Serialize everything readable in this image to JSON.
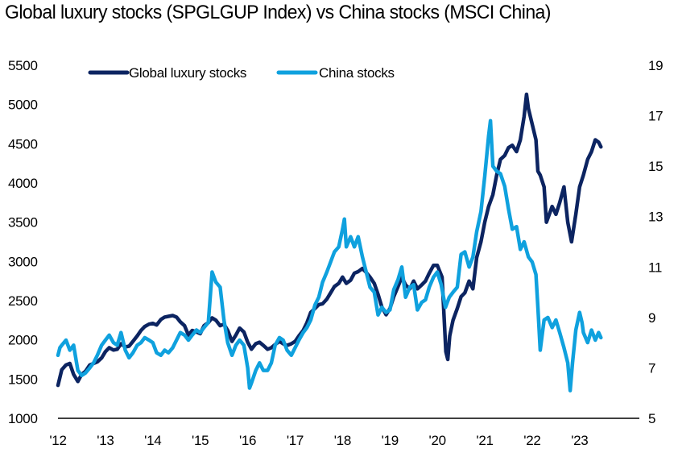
{
  "chart_data": {
    "type": "line",
    "title": "Global luxury stocks (SPGLGUP Index) vs China stocks (MSCI China)",
    "xlabel": "",
    "ylabel_left": "",
    "ylabel_right": "",
    "x_ticks": [
      "'12",
      "'13",
      "'14",
      "'15",
      "'16",
      "'17",
      "'18",
      "'19",
      "'20",
      "'21",
      "'22",
      "'23"
    ],
    "x_range": [
      2012,
      2023.75
    ],
    "y_left": {
      "min": 1000,
      "max": 5500,
      "ticks": [
        "1000",
        "1500",
        "2000",
        "2500",
        "3000",
        "3500",
        "4000",
        "4500",
        "5000",
        "5500"
      ]
    },
    "y_right": {
      "min": 5,
      "max": 19,
      "ticks": [
        "5",
        "7",
        "9",
        "11",
        "13",
        "15",
        "17",
        "19"
      ]
    },
    "legend": {
      "position": "top-left"
    },
    "series": [
      {
        "name": "Global luxury stocks",
        "axis": "left",
        "color": "#0c2461",
        "points": [
          [
            2012.0,
            1420
          ],
          [
            2012.08,
            1620
          ],
          [
            2012.17,
            1680
          ],
          [
            2012.25,
            1700
          ],
          [
            2012.33,
            1560
          ],
          [
            2012.42,
            1470
          ],
          [
            2012.5,
            1560
          ],
          [
            2012.58,
            1600
          ],
          [
            2012.67,
            1680
          ],
          [
            2012.75,
            1700
          ],
          [
            2012.83,
            1720
          ],
          [
            2012.92,
            1770
          ],
          [
            2013.0,
            1850
          ],
          [
            2013.08,
            1900
          ],
          [
            2013.17,
            1870
          ],
          [
            2013.25,
            1880
          ],
          [
            2013.33,
            1950
          ],
          [
            2013.42,
            1910
          ],
          [
            2013.5,
            1920
          ],
          [
            2013.58,
            1980
          ],
          [
            2013.67,
            2050
          ],
          [
            2013.75,
            2120
          ],
          [
            2013.83,
            2170
          ],
          [
            2013.92,
            2200
          ],
          [
            2014.0,
            2210
          ],
          [
            2014.08,
            2190
          ],
          [
            2014.17,
            2260
          ],
          [
            2014.25,
            2290
          ],
          [
            2014.33,
            2300
          ],
          [
            2014.42,
            2310
          ],
          [
            2014.5,
            2290
          ],
          [
            2014.58,
            2230
          ],
          [
            2014.67,
            2180
          ],
          [
            2014.75,
            2060
          ],
          [
            2014.83,
            2120
          ],
          [
            2014.92,
            2100
          ],
          [
            2015.0,
            2080
          ],
          [
            2015.08,
            2180
          ],
          [
            2015.17,
            2220
          ],
          [
            2015.25,
            2280
          ],
          [
            2015.33,
            2250
          ],
          [
            2015.42,
            2180
          ],
          [
            2015.5,
            2200
          ],
          [
            2015.58,
            2120
          ],
          [
            2015.67,
            1980
          ],
          [
            2015.75,
            2060
          ],
          [
            2015.83,
            2150
          ],
          [
            2015.92,
            2100
          ],
          [
            2016.0,
            1970
          ],
          [
            2016.08,
            1880
          ],
          [
            2016.17,
            1950
          ],
          [
            2016.25,
            1970
          ],
          [
            2016.33,
            1930
          ],
          [
            2016.42,
            1880
          ],
          [
            2016.5,
            1900
          ],
          [
            2016.58,
            1940
          ],
          [
            2016.67,
            1980
          ],
          [
            2016.75,
            1950
          ],
          [
            2016.83,
            1930
          ],
          [
            2016.92,
            1950
          ],
          [
            2017.0,
            1980
          ],
          [
            2017.08,
            2050
          ],
          [
            2017.17,
            2120
          ],
          [
            2017.25,
            2220
          ],
          [
            2017.33,
            2350
          ],
          [
            2017.42,
            2400
          ],
          [
            2017.5,
            2450
          ],
          [
            2017.58,
            2460
          ],
          [
            2017.67,
            2520
          ],
          [
            2017.75,
            2600
          ],
          [
            2017.83,
            2680
          ],
          [
            2017.92,
            2720
          ],
          [
            2018.0,
            2800
          ],
          [
            2018.08,
            2720
          ],
          [
            2018.17,
            2760
          ],
          [
            2018.25,
            2850
          ],
          [
            2018.33,
            2870
          ],
          [
            2018.42,
            2910
          ],
          [
            2018.5,
            2860
          ],
          [
            2018.58,
            2800
          ],
          [
            2018.67,
            2720
          ],
          [
            2018.75,
            2580
          ],
          [
            2018.83,
            2420
          ],
          [
            2018.92,
            2320
          ],
          [
            2019.0,
            2400
          ],
          [
            2019.08,
            2550
          ],
          [
            2019.17,
            2680
          ],
          [
            2019.25,
            2800
          ],
          [
            2019.33,
            2700
          ],
          [
            2019.42,
            2650
          ],
          [
            2019.5,
            2750
          ],
          [
            2019.58,
            2650
          ],
          [
            2019.67,
            2700
          ],
          [
            2019.75,
            2750
          ],
          [
            2019.83,
            2850
          ],
          [
            2019.92,
            2950
          ],
          [
            2020.0,
            2950
          ],
          [
            2020.1,
            2800
          ],
          [
            2020.18,
            1850
          ],
          [
            2020.22,
            1750
          ],
          [
            2020.26,
            2050
          ],
          [
            2020.33,
            2250
          ],
          [
            2020.42,
            2400
          ],
          [
            2020.5,
            2550
          ],
          [
            2020.58,
            2600
          ],
          [
            2020.67,
            2750
          ],
          [
            2020.75,
            2650
          ],
          [
            2020.83,
            3050
          ],
          [
            2020.92,
            3250
          ],
          [
            2021.0,
            3500
          ],
          [
            2021.08,
            3700
          ],
          [
            2021.17,
            3850
          ],
          [
            2021.25,
            4100
          ],
          [
            2021.33,
            4300
          ],
          [
            2021.42,
            4350
          ],
          [
            2021.5,
            4450
          ],
          [
            2021.58,
            4480
          ],
          [
            2021.67,
            4400
          ],
          [
            2021.75,
            4550
          ],
          [
            2021.83,
            4850
          ],
          [
            2021.88,
            5130
          ],
          [
            2021.92,
            4950
          ],
          [
            2022.0,
            4750
          ],
          [
            2022.08,
            4550
          ],
          [
            2022.12,
            4150
          ],
          [
            2022.17,
            4100
          ],
          [
            2022.25,
            3950
          ],
          [
            2022.3,
            3500
          ],
          [
            2022.42,
            3700
          ],
          [
            2022.5,
            3600
          ],
          [
            2022.58,
            3750
          ],
          [
            2022.67,
            3950
          ],
          [
            2022.75,
            3500
          ],
          [
            2022.83,
            3250
          ],
          [
            2022.92,
            3600
          ],
          [
            2023.0,
            3950
          ],
          [
            2023.08,
            4100
          ],
          [
            2023.17,
            4300
          ],
          [
            2023.25,
            4400
          ],
          [
            2023.33,
            4550
          ],
          [
            2023.4,
            4520
          ],
          [
            2023.45,
            4460
          ]
        ]
      },
      {
        "name": "China stocks",
        "axis": "right",
        "color": "#0fa1de",
        "points": [
          [
            2012.0,
            7.5
          ],
          [
            2012.04,
            7.8
          ],
          [
            2012.08,
            7.9
          ],
          [
            2012.17,
            8.1
          ],
          [
            2012.25,
            7.7
          ],
          [
            2012.33,
            7.9
          ],
          [
            2012.42,
            6.9
          ],
          [
            2012.5,
            6.7
          ],
          [
            2012.58,
            6.8
          ],
          [
            2012.67,
            7.0
          ],
          [
            2012.75,
            7.2
          ],
          [
            2012.83,
            7.5
          ],
          [
            2012.92,
            7.9
          ],
          [
            2013.0,
            8.1
          ],
          [
            2013.08,
            8.3
          ],
          [
            2013.17,
            8.0
          ],
          [
            2013.25,
            7.9
          ],
          [
            2013.33,
            8.4
          ],
          [
            2013.42,
            7.7
          ],
          [
            2013.5,
            7.4
          ],
          [
            2013.58,
            7.6
          ],
          [
            2013.67,
            7.9
          ],
          [
            2013.75,
            8.0
          ],
          [
            2013.83,
            8.2
          ],
          [
            2013.92,
            8.1
          ],
          [
            2014.0,
            8.0
          ],
          [
            2014.08,
            7.6
          ],
          [
            2014.17,
            7.5
          ],
          [
            2014.25,
            7.7
          ],
          [
            2014.33,
            7.6
          ],
          [
            2014.42,
            7.8
          ],
          [
            2014.5,
            8.1
          ],
          [
            2014.58,
            8.4
          ],
          [
            2014.67,
            8.3
          ],
          [
            2014.75,
            8.1
          ],
          [
            2014.83,
            8.3
          ],
          [
            2014.92,
            8.5
          ],
          [
            2015.0,
            8.4
          ],
          [
            2015.08,
            8.6
          ],
          [
            2015.17,
            8.8
          ],
          [
            2015.25,
            10.8
          ],
          [
            2015.33,
            10.4
          ],
          [
            2015.42,
            10.2
          ],
          [
            2015.5,
            8.9
          ],
          [
            2015.58,
            8.0
          ],
          [
            2015.67,
            7.5
          ],
          [
            2015.75,
            7.9
          ],
          [
            2015.83,
            8.1
          ],
          [
            2015.92,
            7.9
          ],
          [
            2016.0,
            7.0
          ],
          [
            2016.04,
            6.2
          ],
          [
            2016.08,
            6.4
          ],
          [
            2016.17,
            6.9
          ],
          [
            2016.25,
            7.2
          ],
          [
            2016.33,
            6.9
          ],
          [
            2016.42,
            6.9
          ],
          [
            2016.5,
            7.2
          ],
          [
            2016.58,
            7.9
          ],
          [
            2016.67,
            8.2
          ],
          [
            2016.75,
            8.1
          ],
          [
            2016.83,
            7.7
          ],
          [
            2016.92,
            7.5
          ],
          [
            2017.0,
            7.8
          ],
          [
            2017.08,
            8.1
          ],
          [
            2017.17,
            8.4
          ],
          [
            2017.25,
            8.6
          ],
          [
            2017.33,
            8.9
          ],
          [
            2017.42,
            9.5
          ],
          [
            2017.5,
            9.8
          ],
          [
            2017.58,
            10.4
          ],
          [
            2017.67,
            10.8
          ],
          [
            2017.75,
            11.2
          ],
          [
            2017.83,
            11.6
          ],
          [
            2017.92,
            11.8
          ],
          [
            2018.0,
            12.5
          ],
          [
            2018.04,
            12.9
          ],
          [
            2018.08,
            11.8
          ],
          [
            2018.17,
            12.2
          ],
          [
            2018.25,
            11.8
          ],
          [
            2018.33,
            12.2
          ],
          [
            2018.42,
            11.4
          ],
          [
            2018.5,
            10.8
          ],
          [
            2018.58,
            10.2
          ],
          [
            2018.67,
            10.0
          ],
          [
            2018.75,
            9.1
          ],
          [
            2018.83,
            9.4
          ],
          [
            2018.92,
            9.2
          ],
          [
            2019.0,
            9.3
          ],
          [
            2019.08,
            10.1
          ],
          [
            2019.17,
            10.5
          ],
          [
            2019.25,
            11.0
          ],
          [
            2019.33,
            9.8
          ],
          [
            2019.42,
            10.2
          ],
          [
            2019.5,
            10.3
          ],
          [
            2019.58,
            9.3
          ],
          [
            2019.67,
            9.6
          ],
          [
            2019.75,
            9.7
          ],
          [
            2019.83,
            10.2
          ],
          [
            2019.92,
            10.6
          ],
          [
            2020.0,
            10.8
          ],
          [
            2020.08,
            10.3
          ],
          [
            2020.17,
            9.4
          ],
          [
            2020.25,
            9.8
          ],
          [
            2020.33,
            10.0
          ],
          [
            2020.42,
            10.2
          ],
          [
            2020.5,
            11.5
          ],
          [
            2020.58,
            11.6
          ],
          [
            2020.67,
            11.0
          ],
          [
            2020.75,
            11.4
          ],
          [
            2020.83,
            12.4
          ],
          [
            2020.92,
            13.2
          ],
          [
            2021.0,
            14.6
          ],
          [
            2021.08,
            16.2
          ],
          [
            2021.12,
            16.8
          ],
          [
            2021.17,
            15.0
          ],
          [
            2021.25,
            14.8
          ],
          [
            2021.33,
            14.7
          ],
          [
            2021.42,
            14.2
          ],
          [
            2021.5,
            13.3
          ],
          [
            2021.58,
            12.5
          ],
          [
            2021.67,
            12.6
          ],
          [
            2021.75,
            11.7
          ],
          [
            2021.83,
            12.0
          ],
          [
            2021.92,
            11.4
          ],
          [
            2022.0,
            11.2
          ],
          [
            2022.08,
            10.7
          ],
          [
            2022.12,
            9.4
          ],
          [
            2022.17,
            7.7
          ],
          [
            2022.25,
            8.9
          ],
          [
            2022.33,
            9.0
          ],
          [
            2022.42,
            8.6
          ],
          [
            2022.5,
            8.9
          ],
          [
            2022.58,
            8.4
          ],
          [
            2022.67,
            7.8
          ],
          [
            2022.75,
            7.2
          ],
          [
            2022.8,
            6.1
          ],
          [
            2022.85,
            7.2
          ],
          [
            2022.92,
            8.5
          ],
          [
            2023.0,
            9.2
          ],
          [
            2023.05,
            8.8
          ],
          [
            2023.08,
            8.4
          ],
          [
            2023.17,
            8.0
          ],
          [
            2023.25,
            8.5
          ],
          [
            2023.33,
            8.1
          ],
          [
            2023.4,
            8.4
          ],
          [
            2023.45,
            8.2
          ]
        ]
      }
    ]
  }
}
